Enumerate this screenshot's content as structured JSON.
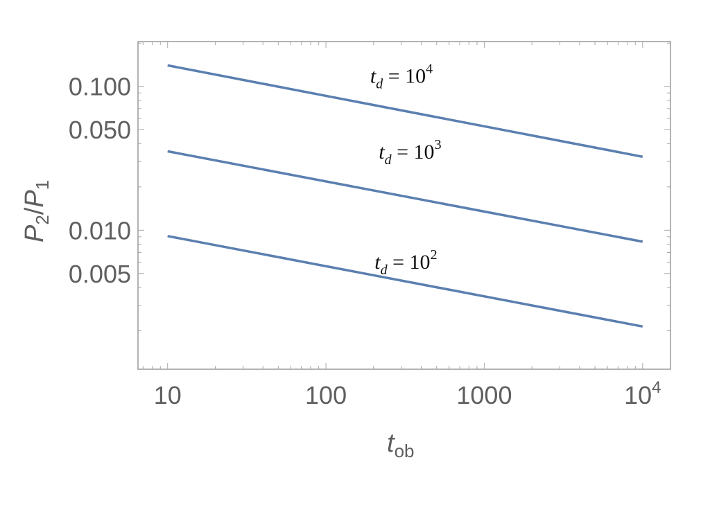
{
  "chart_data": {
    "type": "line",
    "x_scale": "log",
    "y_scale": "log",
    "xlim": [
      6.5,
      15000
    ],
    "ylim": [
      0.00108,
      0.205
    ],
    "grid": false,
    "xlabel": {
      "base": "t",
      "sub": "ob"
    },
    "ylabel": {
      "p": "P",
      "p2": "2",
      "slash": "/",
      "p1": "P",
      "p1sub": "1"
    },
    "x_ticks": [
      {
        "value": 10,
        "label": "10"
      },
      {
        "value": 100,
        "label": "100"
      },
      {
        "value": 1000,
        "label": "1000"
      },
      {
        "value": 10000,
        "label": "10",
        "exp": "4"
      }
    ],
    "y_ticks": [
      {
        "value": 0.005,
        "label": "0.005"
      },
      {
        "value": 0.01,
        "label": "0.010"
      },
      {
        "value": 0.05,
        "label": "0.050"
      },
      {
        "value": 0.1,
        "label": "0.100"
      }
    ],
    "series": [
      {
        "color": "#5b7fb0",
        "x": [
          10,
          10000
        ],
        "y": [
          0.14,
          0.0324
        ],
        "annotation": {
          "t": "t",
          "sub": "d",
          "eq": " = 10",
          "exp": "4",
          "x": 300,
          "y": 0.106
        }
      },
      {
        "color": "#5b7fb0",
        "x": [
          10,
          10000
        ],
        "y": [
          0.0354,
          0.00832
        ],
        "annotation": {
          "t": "t",
          "sub": "d",
          "eq": " = 10",
          "exp": "3",
          "x": 340,
          "y": 0.0315
        }
      },
      {
        "color": "#5b7fb0",
        "x": [
          10,
          10000
        ],
        "y": [
          0.0091,
          0.00214
        ],
        "annotation": {
          "t": "t",
          "sub": "d",
          "eq": " = 10",
          "exp": "2",
          "x": 320,
          "y": 0.0054
        }
      }
    ]
  }
}
